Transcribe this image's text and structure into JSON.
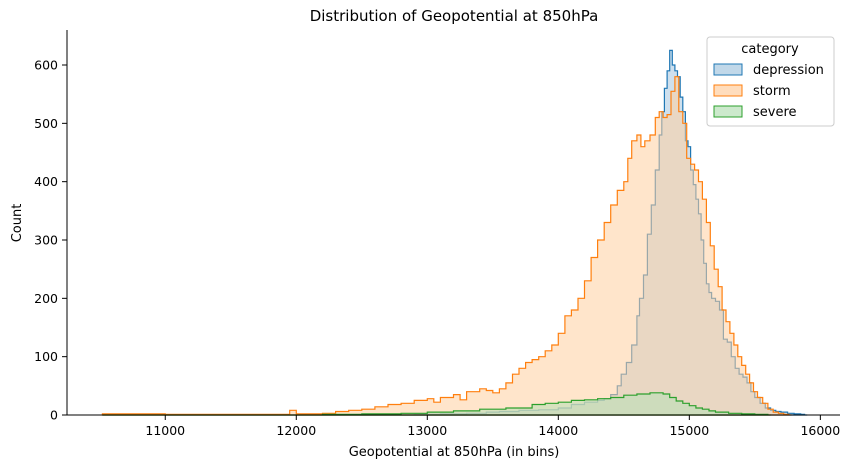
{
  "chart_data": {
    "type": "histogram-step",
    "title": "Distribution of Geopotential at 850hPa",
    "xlabel": "Geopotential at 850hPa (in bins)",
    "ylabel": "Count",
    "xlim": [
      10250,
      16150
    ],
    "ylim": [
      0,
      660
    ],
    "xticks": [
      11000,
      12000,
      13000,
      14000,
      15000,
      16000
    ],
    "yticks": [
      0,
      100,
      200,
      300,
      400,
      500,
      600
    ],
    "grid": false,
    "legend": {
      "title": "category",
      "placement": "top-right"
    },
    "series": [
      {
        "name": "depression",
        "color": "#1f77b4",
        "fill": "#a6c7e0",
        "points": [
          [
            10520,
            0
          ],
          [
            12400,
            0
          ],
          [
            12900,
            1
          ],
          [
            13100,
            2
          ],
          [
            13300,
            3
          ],
          [
            13450,
            5
          ],
          [
            13550,
            6
          ],
          [
            13700,
            8
          ],
          [
            13850,
            9
          ],
          [
            14000,
            12
          ],
          [
            14100,
            18
          ],
          [
            14200,
            22
          ],
          [
            14300,
            25
          ],
          [
            14350,
            28
          ],
          [
            14400,
            35
          ],
          [
            14450,
            50
          ],
          [
            14480,
            70
          ],
          [
            14520,
            90
          ],
          [
            14560,
            120
          ],
          [
            14600,
            170
          ],
          [
            14620,
            200
          ],
          [
            14650,
            240
          ],
          [
            14680,
            310
          ],
          [
            14710,
            360
          ],
          [
            14740,
            420
          ],
          [
            14770,
            480
          ],
          [
            14790,
            520
          ],
          [
            14810,
            560
          ],
          [
            14830,
            590
          ],
          [
            14850,
            625
          ],
          [
            14870,
            600
          ],
          [
            14890,
            590
          ],
          [
            14910,
            580
          ],
          [
            14930,
            545
          ],
          [
            14950,
            520
          ],
          [
            14970,
            470
          ],
          [
            14990,
            460
          ],
          [
            15010,
            420
          ],
          [
            15030,
            395
          ],
          [
            15050,
            370
          ],
          [
            15070,
            345
          ],
          [
            15090,
            300
          ],
          [
            15110,
            260
          ],
          [
            15130,
            225
          ],
          [
            15150,
            210
          ],
          [
            15170,
            200
          ],
          [
            15200,
            195
          ],
          [
            15230,
            180
          ],
          [
            15260,
            130
          ],
          [
            15290,
            125
          ],
          [
            15320,
            100
          ],
          [
            15350,
            80
          ],
          [
            15380,
            70
          ],
          [
            15410,
            65
          ],
          [
            15440,
            55
          ],
          [
            15470,
            40
          ],
          [
            15500,
            30
          ],
          [
            15540,
            20
          ],
          [
            15580,
            12
          ],
          [
            15620,
            8
          ],
          [
            15660,
            6
          ],
          [
            15700,
            5
          ],
          [
            15750,
            3
          ],
          [
            15800,
            2
          ],
          [
            15850,
            1
          ],
          [
            15880,
            0
          ]
        ]
      },
      {
        "name": "storm",
        "color": "#ff7f0e",
        "fill": "#ffcfa1",
        "points": [
          [
            10520,
            2
          ],
          [
            10700,
            2
          ],
          [
            11000,
            1
          ],
          [
            11200,
            1
          ],
          [
            11500,
            1
          ],
          [
            11800,
            1
          ],
          [
            11950,
            8
          ],
          [
            12000,
            2
          ],
          [
            12200,
            3
          ],
          [
            12300,
            6
          ],
          [
            12400,
            8
          ],
          [
            12500,
            10
          ],
          [
            12600,
            14
          ],
          [
            12700,
            18
          ],
          [
            12800,
            20
          ],
          [
            12900,
            25
          ],
          [
            13000,
            28
          ],
          [
            13050,
            22
          ],
          [
            13100,
            30
          ],
          [
            13200,
            35
          ],
          [
            13250,
            26
          ],
          [
            13300,
            40
          ],
          [
            13400,
            45
          ],
          [
            13450,
            42
          ],
          [
            13500,
            38
          ],
          [
            13550,
            45
          ],
          [
            13600,
            55
          ],
          [
            13650,
            70
          ],
          [
            13700,
            80
          ],
          [
            13750,
            90
          ],
          [
            13800,
            95
          ],
          [
            13850,
            100
          ],
          [
            13900,
            110
          ],
          [
            13950,
            120
          ],
          [
            14000,
            140
          ],
          [
            14050,
            170
          ],
          [
            14100,
            180
          ],
          [
            14150,
            200
          ],
          [
            14200,
            230
          ],
          [
            14250,
            270
          ],
          [
            14300,
            300
          ],
          [
            14350,
            330
          ],
          [
            14400,
            360
          ],
          [
            14450,
            385
          ],
          [
            14500,
            400
          ],
          [
            14530,
            440
          ],
          [
            14560,
            470
          ],
          [
            14600,
            480
          ],
          [
            14630,
            460
          ],
          [
            14660,
            470
          ],
          [
            14700,
            480
          ],
          [
            14740,
            510
          ],
          [
            14770,
            520
          ],
          [
            14800,
            510
          ],
          [
            14830,
            515
          ],
          [
            14860,
            555
          ],
          [
            14890,
            580
          ],
          [
            14920,
            520
          ],
          [
            14950,
            500
          ],
          [
            14980,
            440
          ],
          [
            15010,
            430
          ],
          [
            15040,
            420
          ],
          [
            15070,
            400
          ],
          [
            15100,
            370
          ],
          [
            15130,
            330
          ],
          [
            15160,
            290
          ],
          [
            15190,
            250
          ],
          [
            15220,
            220
          ],
          [
            15250,
            180
          ],
          [
            15280,
            160
          ],
          [
            15310,
            140
          ],
          [
            15340,
            120
          ],
          [
            15370,
            100
          ],
          [
            15400,
            85
          ],
          [
            15430,
            70
          ],
          [
            15460,
            55
          ],
          [
            15490,
            40
          ],
          [
            15520,
            30
          ],
          [
            15560,
            20
          ],
          [
            15600,
            10
          ],
          [
            15640,
            5
          ],
          [
            15680,
            3
          ],
          [
            15720,
            1
          ],
          [
            15760,
            0
          ]
        ]
      },
      {
        "name": "severe",
        "color": "#2ca02c",
        "fill": "#b7e0b7",
        "points": [
          [
            10520,
            0
          ],
          [
            11200,
            0
          ],
          [
            12200,
            1
          ],
          [
            12500,
            2
          ],
          [
            12800,
            3
          ],
          [
            13000,
            5
          ],
          [
            13200,
            7
          ],
          [
            13400,
            10
          ],
          [
            13600,
            12
          ],
          [
            13800,
            18
          ],
          [
            13900,
            20
          ],
          [
            14000,
            22
          ],
          [
            14100,
            25
          ],
          [
            14200,
            26
          ],
          [
            14300,
            28
          ],
          [
            14400,
            30
          ],
          [
            14500,
            34
          ],
          [
            14600,
            36
          ],
          [
            14700,
            38
          ],
          [
            14800,
            36
          ],
          [
            14850,
            30
          ],
          [
            14900,
            24
          ],
          [
            14950,
            20
          ],
          [
            15000,
            16
          ],
          [
            15050,
            12
          ],
          [
            15100,
            10
          ],
          [
            15150,
            7
          ],
          [
            15200,
            5
          ],
          [
            15300,
            3
          ],
          [
            15400,
            2
          ],
          [
            15500,
            1
          ],
          [
            15600,
            0
          ]
        ]
      }
    ]
  }
}
